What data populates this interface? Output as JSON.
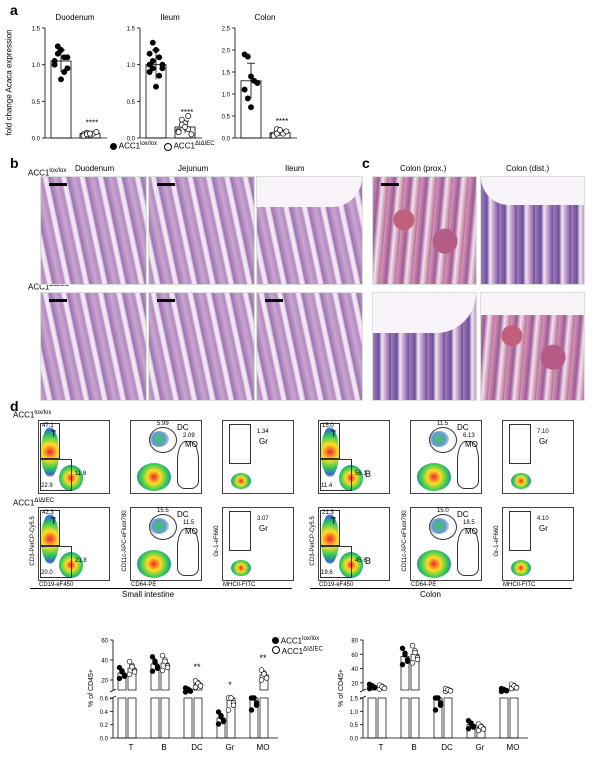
{
  "panel_a": {
    "letter": "a",
    "ylabel": "fold change Acaca expression",
    "charts": [
      {
        "title": "Duodenum",
        "lox_mean": 1.05,
        "lox_sd": 0.15,
        "ko_mean": 0.06,
        "ko_sd": 0.03,
        "sig": "****",
        "lox_points": [
          1.05,
          1.25,
          1.2,
          1.1,
          0.95,
          1.0,
          1.15,
          0.8,
          0.9,
          1.1
        ],
        "ko_points": [
          0.05,
          0.07,
          0.04,
          0.06,
          0.08,
          0.03,
          0.05,
          0.06
        ]
      },
      {
        "title": "Ileum",
        "lox_mean": 1.0,
        "lox_sd": 0.2,
        "ko_mean": 0.15,
        "ko_sd": 0.08,
        "sig": "****",
        "lox_points": [
          1.0,
          1.3,
          1.2,
          1.1,
          0.95,
          0.9,
          1.05,
          0.7,
          0.85,
          1.0,
          1.15,
          0.95
        ],
        "ko_points": [
          0.1,
          0.25,
          0.2,
          0.12,
          0.05,
          0.08,
          0.18,
          0.15,
          0.3
        ]
      },
      {
        "title": "Colon",
        "lox_mean": 1.3,
        "lox_sd": 0.4,
        "ko_mean": 0.12,
        "ko_sd": 0.06,
        "sig": "****",
        "lox_points": [
          1.9,
          1.85,
          1.4,
          1.3,
          1.25,
          1.1,
          0.9,
          0.7
        ],
        "ko_points": [
          0.08,
          0.2,
          0.12,
          0.1,
          0.15,
          0.05,
          0.1,
          0.18
        ]
      }
    ],
    "yticks": [
      [
        "0.0",
        "0.5",
        "1.0",
        "1.5"
      ],
      [
        "0.0",
        "0.5",
        "1.0",
        "1.5"
      ],
      [
        "0.0",
        "0.5",
        "1.0",
        "1.5",
        "2.0",
        "2.5"
      ]
    ],
    "legend_lox": "ACC1",
    "legend_lox_sup": "lox/lox",
    "legend_ko": "ACC1",
    "legend_ko_sup": "ΔIΔIEC"
  },
  "panel_b": {
    "letter": "b",
    "row1": "ACC1",
    "row1_sup": "lox/lox",
    "row2": "ACC1",
    "row2_sup": "ΔIΔIEC",
    "cols": [
      "Duodenum",
      "Jejunum",
      "Ileum"
    ]
  },
  "panel_c": {
    "letter": "c",
    "cols": [
      "Colon (prox.)",
      "Colon (dist.)"
    ]
  },
  "panel_d": {
    "letter": "d",
    "row1": "ACC1",
    "row1_sup": "lox/lox",
    "row2": "ACC1",
    "row2_sup": "ΔIΔIEC",
    "left_group": "Small intestine",
    "right_group": "Colon",
    "x_labels": [
      "CD19-eF450",
      "CD64-PE",
      "MHCII-FITC"
    ],
    "y_labels": [
      "CD3-PerCP-Cy5.5",
      "CD11c-APC-eFluor780",
      "Gr-1-eF660"
    ],
    "si_lox": {
      "T": "47.1",
      "B": "11.8",
      "DN": "22.9",
      "DC": "5.99",
      "MO": "2.09",
      "Gr": "1.34"
    },
    "si_ko": {
      "T": "42.3",
      "B": "21.8",
      "DN": "20.0",
      "DC": "15.5",
      "MO": "11.5",
      "Gr": "3.07"
    },
    "co_lox": {
      "T": "15.0",
      "B": "56.1",
      "DN": "11.4",
      "DC": "11.5",
      "MO": "6.13",
      "Gr": "7.10"
    },
    "co_ko": {
      "T": "21.3",
      "B": "45.6",
      "DN": "19.6",
      "DC": "15.0",
      "MO": "18.5",
      "Gr": "4.10"
    },
    "gate_T": "T",
    "gate_B": "B",
    "gate_DC": "DC",
    "gate_MO": "MO",
    "gate_Gr": "Gr"
  },
  "chart_data": [
    {
      "type": "bar",
      "title": "Small intestine",
      "ylabel": "% of CD45+",
      "ylim": [
        0,
        60
      ],
      "categories": [
        "T",
        "B",
        "DC",
        "Gr",
        "MO"
      ],
      "series": [
        {
          "name": "ACC1 lox/lox",
          "values": [
            27,
            36,
            10,
            0.3,
            5
          ]
        },
        {
          "name": "ACC1 ΔIΔIEC",
          "values": [
            32,
            37,
            16,
            0.6,
            25
          ]
        }
      ],
      "significance": [
        "",
        "",
        "**",
        "*",
        "**"
      ],
      "yticks": [
        "0",
        "0.0",
        "0.2",
        "0.4",
        "0.6",
        "20",
        "40",
        "60"
      ]
    },
    {
      "type": "bar",
      "title": "Colon",
      "ylabel": "% of CD45+",
      "ylim": [
        0,
        80
      ],
      "categories": [
        "T",
        "B",
        "DC",
        "Gr",
        "MO"
      ],
      "series": [
        {
          "name": "ACC1 lox/lox",
          "values": [
            15,
            57,
            9,
            0.5,
            10
          ]
        },
        {
          "name": "ACC1 ΔIΔIEC",
          "values": [
            14,
            60,
            10,
            0.4,
            15
          ]
        }
      ],
      "yticks": [
        "0.0",
        "0.5",
        "1.0",
        "1.5",
        "20",
        "40",
        "60",
        "80"
      ]
    }
  ]
}
